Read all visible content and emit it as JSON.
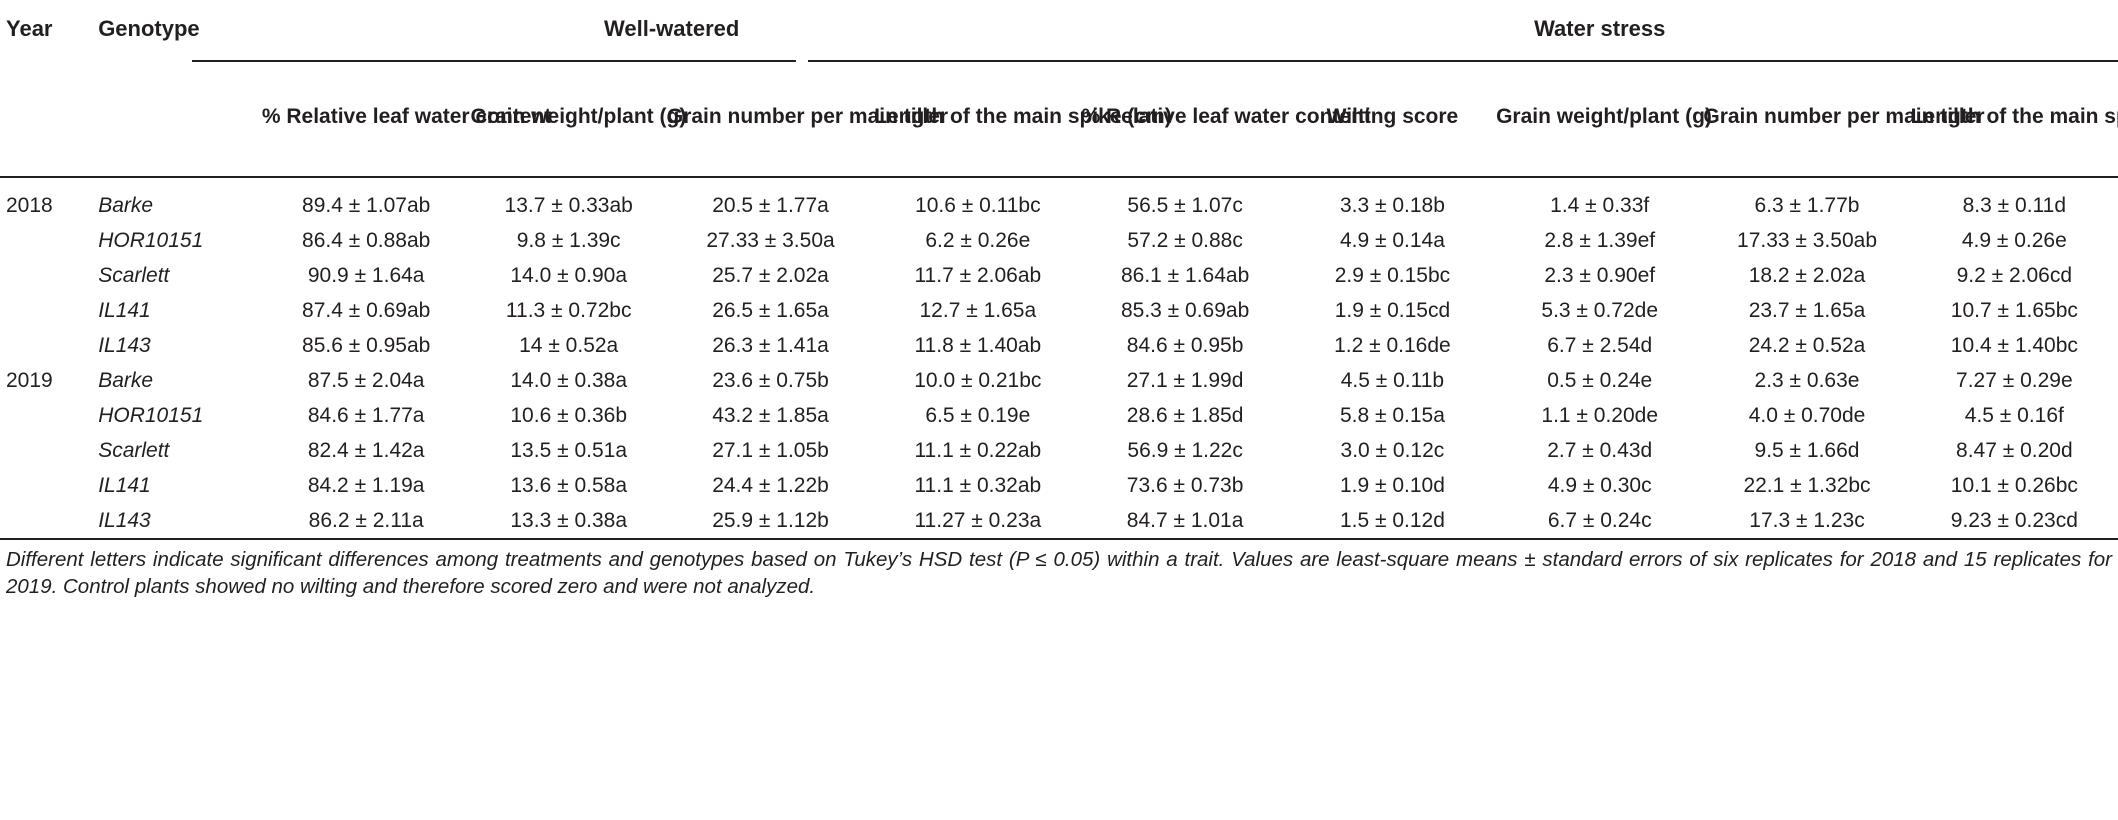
{
  "header": {
    "year": "Year",
    "genotype": "Genotype",
    "group_well_watered": "Well-watered",
    "group_water_stress": "Water stress"
  },
  "columns": {
    "ww": [
      "% Relative leaf water content",
      "Grain weight/plant (g)",
      "Grain number per main tiller",
      "Length of the main spike (cm)"
    ],
    "ws": [
      "% Relative leaf water content",
      "Wilting score",
      "Grain weight/plant (g)",
      "Grain number per main tiller",
      "Length of the main spike (cm)"
    ]
  },
  "rows": [
    {
      "year": "2018",
      "genotype": "Barke",
      "cells": [
        "89.4 ± 1.07ab",
        "13.7 ± 0.33ab",
        "20.5 ± 1.77a",
        "10.6 ± 0.11bc",
        "56.5 ± 1.07c",
        "3.3 ± 0.18b",
        "1.4 ± 0.33f",
        "6.3 ± 1.77b",
        "8.3 ± 0.11d"
      ]
    },
    {
      "year": "",
      "genotype": "HOR10151",
      "cells": [
        "86.4 ± 0.88ab",
        "9.8 ± 1.39c",
        "27.33 ± 3.50a",
        "6.2 ± 0.26e",
        "57.2 ± 0.88c",
        "4.9 ± 0.14a",
        "2.8 ± 1.39ef",
        "17.33 ± 3.50ab",
        "4.9 ± 0.26e"
      ]
    },
    {
      "year": "",
      "genotype": "Scarlett",
      "cells": [
        "90.9 ± 1.64a",
        "14.0 ± 0.90a",
        "25.7 ± 2.02a",
        "11.7 ± 2.06ab",
        "86.1 ± 1.64ab",
        "2.9 ± 0.15bc",
        "2.3 ± 0.90ef",
        "18.2 ± 2.02a",
        "9.2 ± 2.06cd"
      ]
    },
    {
      "year": "",
      "genotype": "IL141",
      "cells": [
        "87.4 ± 0.69ab",
        "11.3 ± 0.72bc",
        "26.5 ± 1.65a",
        "12.7 ± 1.65a",
        "85.3 ± 0.69ab",
        "1.9 ± 0.15cd",
        "5.3 ± 0.72de",
        "23.7 ± 1.65a",
        "10.7 ± 1.65bc"
      ]
    },
    {
      "year": "",
      "genotype": "IL143",
      "cells": [
        "85.6 ± 0.95ab",
        "14 ± 0.52a",
        "26.3 ± 1.41a",
        "11.8 ± 1.40ab",
        "84.6 ± 0.95b",
        "1.2 ± 0.16de",
        "6.7 ± 2.54d",
        "24.2 ± 0.52a",
        "10.4 ± 1.40bc"
      ]
    },
    {
      "year": "2019",
      "genotype": "Barke",
      "cells": [
        "87.5 ± 2.04a",
        "14.0 ± 0.38a",
        "23.6 ± 0.75b",
        "10.0 ± 0.21bc",
        "27.1 ± 1.99d",
        "4.5 ± 0.11b",
        "0.5 ± 0.24e",
        "2.3 ± 0.63e",
        "7.27 ± 0.29e"
      ]
    },
    {
      "year": "",
      "genotype": "HOR10151",
      "cells": [
        "84.6 ± 1.77a",
        "10.6 ± 0.36b",
        "43.2 ± 1.85a",
        "6.5 ± 0.19e",
        "28.6 ± 1.85d",
        "5.8 ± 0.15a",
        "1.1 ± 0.20de",
        "4.0 ± 0.70de",
        "4.5 ± 0.16f"
      ]
    },
    {
      "year": "",
      "genotype": "Scarlett",
      "cells": [
        "82.4 ± 1.42a",
        "13.5 ± 0.51a",
        "27.1 ± 1.05b",
        "11.1 ± 0.22ab",
        "56.9 ± 1.22c",
        "3.0 ± 0.12c",
        "2.7 ± 0.43d",
        "9.5 ± 1.66d",
        "8.47 ± 0.20d"
      ]
    },
    {
      "year": "",
      "genotype": "IL141",
      "cells": [
        "84.2 ± 1.19a",
        "13.6 ± 0.58a",
        "24.4 ± 1.22b",
        "11.1 ± 0.32ab",
        "73.6 ± 0.73b",
        "1.9 ± 0.10d",
        "4.9 ± 0.30c",
        "22.1 ± 1.32bc",
        "10.1 ± 0.26bc"
      ]
    },
    {
      "year": "",
      "genotype": "IL143",
      "cells": [
        "86.2 ± 2.11a",
        "13.3 ± 0.38a",
        "25.9 ± 1.12b",
        "11.27 ± 0.23a",
        "84.7 ± 1.01a",
        "1.5 ± 0.12d",
        "6.7 ± 0.24c",
        "17.3 ± 1.23c",
        "9.23 ± 0.23cd"
      ]
    }
  ],
  "footnote": "Different letters indicate significant differences among treatments and genotypes based on Tukey’s HSD test (P ≤ 0.05) within a trait. Values are least-square means ± standard errors of six replicates for 2018 and 15 replicates for 2019. Control plants showed no wilting and therefore scored zero and were not analyzed."
}
